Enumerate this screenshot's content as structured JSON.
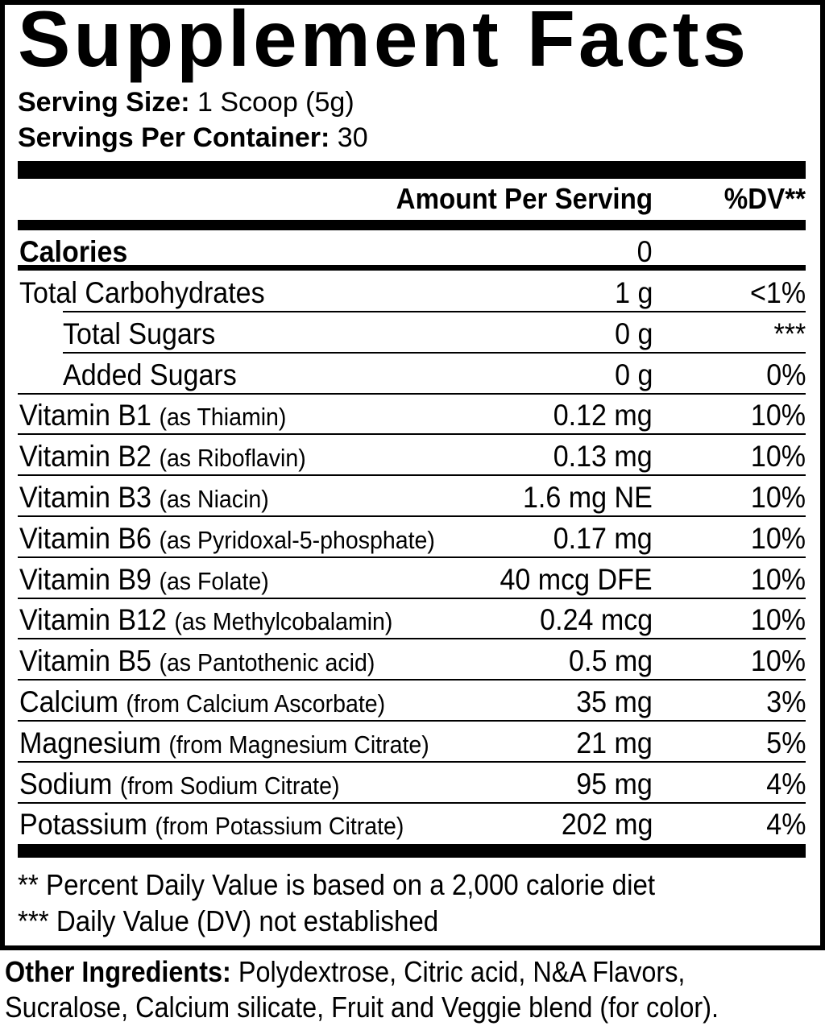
{
  "title": "Supplement Facts",
  "serving_size": {
    "label": "Serving Size:",
    "value": "1 Scoop (5g)"
  },
  "servings_per_container": {
    "label": "Servings Per Container:",
    "value": "30"
  },
  "header": {
    "amount": "Amount Per Serving",
    "dv": "%DV**"
  },
  "calories": {
    "label": "Calories",
    "amount": "0"
  },
  "rows": [
    {
      "name": "Total Carbohydrates",
      "source": "",
      "amount": "1 g",
      "dv": "<1%"
    },
    {
      "name": "Total Sugars",
      "source": "",
      "amount": "0 g",
      "dv": "***",
      "indent": true
    },
    {
      "name": "Added Sugars",
      "source": "",
      "amount": "0 g",
      "dv": "0%",
      "indent": true
    },
    {
      "name": "Vitamin B1",
      "source": "(as Thiamin)",
      "amount": "0.12 mg",
      "dv": "10%"
    },
    {
      "name": "Vitamin B2",
      "source": "(as Riboflavin)",
      "amount": "0.13 mg",
      "dv": "10%"
    },
    {
      "name": "Vitamin B3",
      "source": "(as Niacin)",
      "amount": "1.6 mg NE",
      "dv": "10%"
    },
    {
      "name": "Vitamin B6",
      "source": "(as Pyridoxal-5-phosphate)",
      "amount": "0.17 mg",
      "dv": "10%"
    },
    {
      "name": "Vitamin B9",
      "source": "(as Folate)",
      "amount": "40 mcg DFE",
      "dv": "10%"
    },
    {
      "name": "Vitamin B12",
      "source": "(as Methylcobalamin)",
      "amount": "0.24 mcg",
      "dv": "10%"
    },
    {
      "name": "Vitamin B5",
      "source": "(as Pantothenic acid)",
      "amount": "0.5 mg",
      "dv": "10%"
    },
    {
      "name": "Calcium",
      "source": "(from Calcium Ascorbate)",
      "amount": "35 mg",
      "dv": "3%"
    },
    {
      "name": "Magnesium",
      "source": "(from Magnesium Citrate)",
      "amount": "21 mg",
      "dv": "5%"
    },
    {
      "name": "Sodium",
      "source": "(from Sodium Citrate)",
      "amount": "95 mg",
      "dv": "4%"
    },
    {
      "name": "Potassium",
      "source": "(from Potassium Citrate)",
      "amount": "202 mg",
      "dv": "4%"
    }
  ],
  "footnotes": [
    "** Percent Daily Value is based on a 2,000 calorie diet",
    "*** Daily Value (DV) not established"
  ],
  "other_ingredients": {
    "label": "Other Ingredients:",
    "line1": "Polydextrose, Citric acid, N&A Flavors,",
    "line2": "Sucralose, Calcium silicate, Fruit and Veggie blend (for color)."
  }
}
